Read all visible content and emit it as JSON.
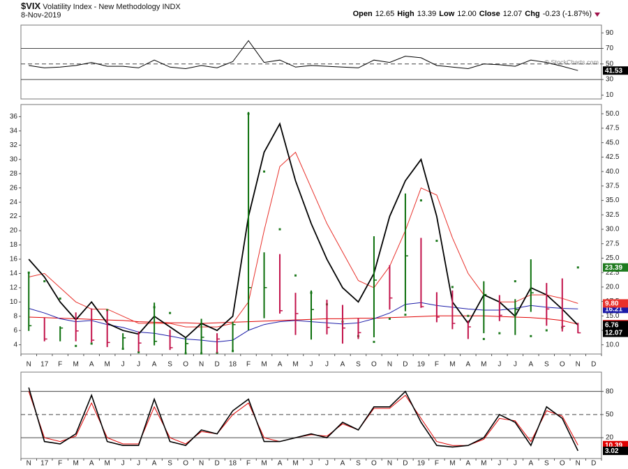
{
  "header": {
    "symbol": "$VIX",
    "name": "Volatility Index - New Methodology",
    "exchange": "INDX",
    "date": "8-Nov-2019",
    "quote": [
      {
        "label": "Open",
        "value": "12.65"
      },
      {
        "label": "High",
        "value": "13.39"
      },
      {
        "label": "Low",
        "value": "12.00"
      },
      {
        "label": "Close",
        "value": "12.07"
      },
      {
        "label": "Chg",
        "value": "-0.23 (-1.87%)"
      }
    ],
    "watermark": "© StockCharts.com"
  },
  "chart_data": [
    {
      "type": "line",
      "ylim": [
        5,
        100
      ],
      "yticks": [
        10,
        30,
        50,
        70,
        90
      ],
      "lines": [
        {
          "value": 70
        },
        {
          "value": 50,
          "dashed": true
        },
        {
          "value": 30
        }
      ],
      "series": [
        {
          "style": "line",
          "color": "#000000",
          "label_color": "#000000",
          "values": [
            48,
            45,
            46,
            48,
            52,
            47,
            47,
            45,
            55,
            46,
            44,
            48,
            45,
            53,
            80,
            52,
            55,
            46,
            48,
            47,
            46,
            45,
            55,
            52,
            60,
            58,
            48,
            46,
            44,
            50,
            49,
            47,
            55,
            52,
            47,
            41.53,
            null
          ]
        }
      ]
    },
    {
      "type": "ohlc",
      "categories": [
        "N",
        "17",
        "F",
        "M",
        "A",
        "M",
        "J",
        "J",
        "A",
        "S",
        "O",
        "N",
        "D",
        "18",
        "F",
        "M",
        "A",
        "M",
        "J",
        "J",
        "A",
        "S",
        "O",
        "N",
        "D",
        "19",
        "F",
        "M",
        "A",
        "M",
        "J",
        "J",
        "A",
        "S",
        "O",
        "N",
        "D"
      ],
      "ylim": [
        2.7,
        37.7
      ],
      "yticks": [
        4,
        6,
        8,
        10,
        12,
        14,
        16,
        18,
        20,
        22,
        24,
        26,
        28,
        30,
        32,
        34,
        36
      ],
      "y2lim": [
        8.4,
        51.6
      ],
      "y2ticks": [
        {
          "value": 10,
          "label": "10.0"
        },
        {
          "value": 12.5,
          "label": "12.5"
        },
        {
          "value": 15,
          "label": "15.0"
        },
        {
          "value": 17.5,
          "label": "17.5"
        },
        {
          "value": 20,
          "label": "20.0"
        },
        {
          "value": 22.5,
          "label": "22.5"
        },
        {
          "value": 25,
          "label": "25.0"
        },
        {
          "value": 27.5,
          "label": "27.5"
        },
        {
          "value": 30,
          "label": "30.0"
        },
        {
          "value": 32.5,
          "label": "32.5"
        },
        {
          "value": 35,
          "label": "35.0"
        },
        {
          "value": 37.5,
          "label": "37.5"
        },
        {
          "value": 40,
          "label": "40.0"
        },
        {
          "value": 42.5,
          "label": "42.5"
        },
        {
          "value": 45,
          "label": "45.0"
        },
        {
          "value": 47.5,
          "label": "47.5"
        },
        {
          "value": 50,
          "label": "50.0"
        }
      ],
      "series": [
        {
          "style": "line",
          "color": "#e00000",
          "label_color": "#e00000",
          "axis": "y2",
          "values": [
            14.8,
            14.7,
            14.6,
            14.5,
            14.4,
            14.3,
            14.2,
            14.0,
            13.9,
            13.8,
            13.8,
            13.7,
            13.8,
            13.9,
            14.0,
            14.1,
            14.2,
            14.3,
            14.4,
            14.5,
            14.5,
            14.6,
            14.6,
            14.7,
            14.8,
            14.9,
            15.0,
            15.0,
            15.0,
            15.0,
            14.9,
            14.8,
            14.7,
            14.5,
            14.2,
            13.55,
            null
          ]
        },
        {
          "style": "line",
          "color": "#1a1aa8",
          "label_color": "#1a1aa8",
          "axis": "y2",
          "values": [
            16.3,
            15.5,
            14.5,
            14.0,
            14.2,
            13.5,
            13.0,
            12.2,
            12.0,
            11.5,
            11.0,
            10.8,
            10.5,
            10.8,
            12.5,
            13.5,
            14.0,
            14.2,
            14.0,
            13.8,
            13.6,
            13.8,
            14.5,
            15.5,
            17.0,
            17.3,
            16.8,
            16.5,
            16.2,
            16.0,
            16.0,
            16.3,
            16.8,
            16.5,
            16.3,
            16.21,
            null
          ]
        },
        {
          "style": "line",
          "color": "#e8302a",
          "label_color": "#e8302a",
          "values": [
            13.5,
            14,
            12,
            10,
            9,
            9,
            8,
            7,
            7,
            7,
            6.5,
            6.5,
            6.5,
            7,
            10,
            20,
            29,
            31,
            26,
            21,
            17,
            13,
            12,
            15,
            20,
            26,
            25,
            19,
            14,
            11,
            10,
            10,
            11,
            11,
            10.5,
            9.8,
            null
          ],
          "value_labels": [
            null,
            null,
            null,
            null,
            null,
            null,
            null,
            null,
            null,
            null,
            null,
            null,
            null,
            null,
            null,
            null,
            null,
            null,
            null,
            null,
            null,
            null,
            null,
            null,
            null,
            null,
            null,
            null,
            null,
            null,
            null,
            null,
            null,
            null,
            null,
            "9.80",
            null
          ]
        },
        {
          "style": "line",
          "color": "#000000",
          "label_color": "#000000",
          "width": 1.8,
          "values": [
            16,
            13.5,
            10,
            7.5,
            10,
            7,
            6,
            5.5,
            8,
            6.5,
            5,
            7,
            6,
            8,
            22,
            31,
            35,
            27,
            21,
            16,
            12,
            10,
            14,
            22,
            27,
            30,
            22,
            10,
            7,
            11,
            10,
            8,
            12,
            11,
            9,
            6.76,
            null
          ]
        },
        {
          "style": "dots",
          "color": "#1e7a1e",
          "label_color": "#1e7a1e",
          "axis": "y2",
          "values": [
            22.5,
            21.0,
            18.0,
            9.8,
            10.2,
            16.0,
            9.3,
            8.7,
            16.5,
            15.5,
            8.5,
            8.5,
            8.6,
            8.9,
            50.0,
            40.0,
            30.0,
            22.0,
            19.0,
            17.0,
            14.0,
            11.5,
            10.5,
            14.5,
            15.2,
            35.0,
            28.0,
            20.0,
            15.0,
            11.0,
            12.0,
            21.0,
            11.5,
            12.5,
            13.0,
            23.39,
            null
          ]
        },
        {
          "style": "hlc",
          "axis": "y2",
          "up_color": "#0a6e0a",
          "down_color": "#c2124a",
          "label_color": "#000000",
          "high": [
            22.5,
            14.7,
            13.2,
            15.6,
            16.3,
            15.9,
            12.0,
            12.3,
            17.3,
            12.6,
            11.2,
            14.5,
            12.0,
            14.0,
            50.3,
            26.0,
            25.7,
            19.0,
            19.4,
            17.8,
            16.9,
            14.6,
            28.8,
            23.8,
            36.2,
            28.5,
            19.1,
            19.4,
            14.2,
            21.0,
            18.6,
            17.9,
            24.8,
            20.7,
            21.5,
            13.8,
            null
          ],
          "low": [
            12.4,
            10.6,
            10.6,
            10.6,
            10.4,
            9.6,
            9.4,
            8.8,
            9.9,
            9.1,
            8.6,
            8.6,
            8.6,
            8.9,
            12.5,
            14.6,
            15.4,
            11.7,
            10.9,
            11.8,
            10.2,
            11.0,
            11.3,
            16.1,
            15.8,
            16.4,
            13.9,
            12.7,
            11.0,
            12.0,
            14.1,
            11.7,
            15.7,
            13.3,
            12.3,
            12.0,
            null
          ],
          "values": [
            13.3,
            11.0,
            12.9,
            12.4,
            10.8,
            10.4,
            11.2,
            10.3,
            10.6,
            9.5,
            10.2,
            11.3,
            11.0,
            13.5,
            19.9,
            19.9,
            15.9,
            15.4,
            16.1,
            13.0,
            12.9,
            12.1,
            21.2,
            18.1,
            25.4,
            16.6,
            14.8,
            13.7,
            13.1,
            18.7,
            15.1,
            16.1,
            19.0,
            16.2,
            13.2,
            12.07,
            null
          ]
        }
      ]
    },
    {
      "type": "line",
      "categories": [
        "N",
        "17",
        "F",
        "M",
        "A",
        "M",
        "J",
        "J",
        "A",
        "S",
        "O",
        "N",
        "D",
        "18",
        "F",
        "M",
        "A",
        "M",
        "J",
        "J",
        "A",
        "S",
        "O",
        "N",
        "D",
        "19",
        "F",
        "M",
        "A",
        "M",
        "J",
        "J",
        "A",
        "S",
        "O",
        "N",
        "D"
      ],
      "ylim": [
        -7,
        105
      ],
      "yticks": [
        20,
        50,
        80
      ],
      "lines": [
        {
          "value": 80
        },
        {
          "value": 50,
          "dashed": true
        },
        {
          "value": 20
        }
      ],
      "series": [
        {
          "style": "line",
          "color": "#e00000",
          "label_color": "#e00000",
          "values": [
            80,
            20,
            15,
            22,
            65,
            20,
            12,
            12,
            60,
            20,
            12,
            28,
            25,
            50,
            65,
            20,
            15,
            20,
            24,
            22,
            38,
            30,
            58,
            58,
            75,
            45,
            15,
            10,
            10,
            18,
            45,
            42,
            15,
            55,
            48,
            10.39,
            null
          ]
        },
        {
          "style": "line",
          "color": "#000000",
          "label_color": "#000000",
          "width": 1.6,
          "values": [
            85,
            15,
            12,
            25,
            75,
            15,
            10,
            10,
            70,
            15,
            10,
            30,
            25,
            55,
            70,
            15,
            15,
            20,
            25,
            20,
            40,
            30,
            60,
            60,
            80,
            40,
            10,
            8,
            10,
            20,
            50,
            40,
            10,
            60,
            45,
            3.02,
            null
          ]
        }
      ]
    }
  ]
}
